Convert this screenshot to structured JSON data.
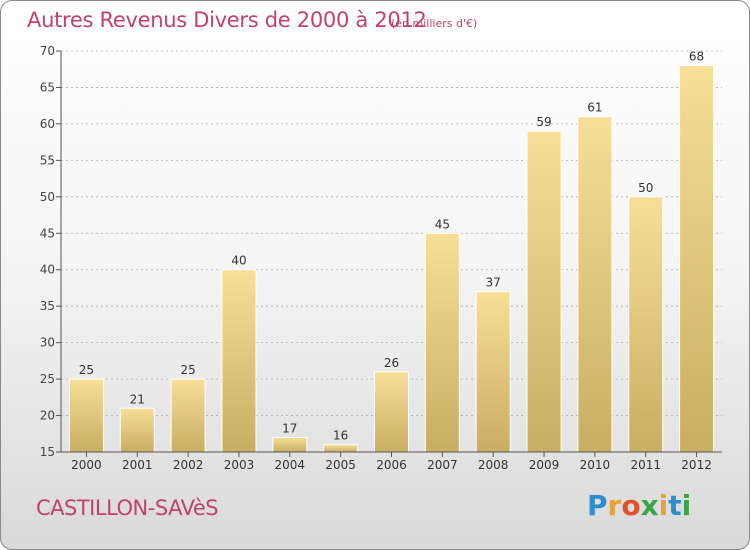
{
  "chart_data": {
    "type": "bar",
    "title": "Autres Revenus Divers de 2000 à 2012",
    "subtitle": "(en milliers d'€)",
    "categories": [
      "2000",
      "2001",
      "2002",
      "2003",
      "2004",
      "2005",
      "2006",
      "2007",
      "2008",
      "2009",
      "2010",
      "2011",
      "2012"
    ],
    "values": [
      25,
      21,
      25,
      40,
      17,
      16,
      26,
      45,
      37,
      59,
      61,
      50,
      68
    ],
    "ylim": [
      15,
      70
    ],
    "yticks": [
      15,
      20,
      25,
      30,
      35,
      40,
      45,
      50,
      55,
      60,
      65,
      70
    ],
    "grid": true,
    "colors": {
      "bar_top": "#f7df98",
      "bar_bottom": "#c9ad63",
      "grid": "#aaaaaa",
      "axis": "#555555",
      "title": "#c2416e"
    }
  },
  "location": "CASTILLON-SAVèS",
  "logo": {
    "letters": [
      "P",
      "r",
      "o",
      "x",
      "i",
      "t",
      "i"
    ],
    "colors": [
      "#2f8fce",
      "#e8a23a",
      "#e0502e",
      "#3aa548",
      "#e8a23a",
      "#2f8fce",
      "#3aa548"
    ]
  }
}
